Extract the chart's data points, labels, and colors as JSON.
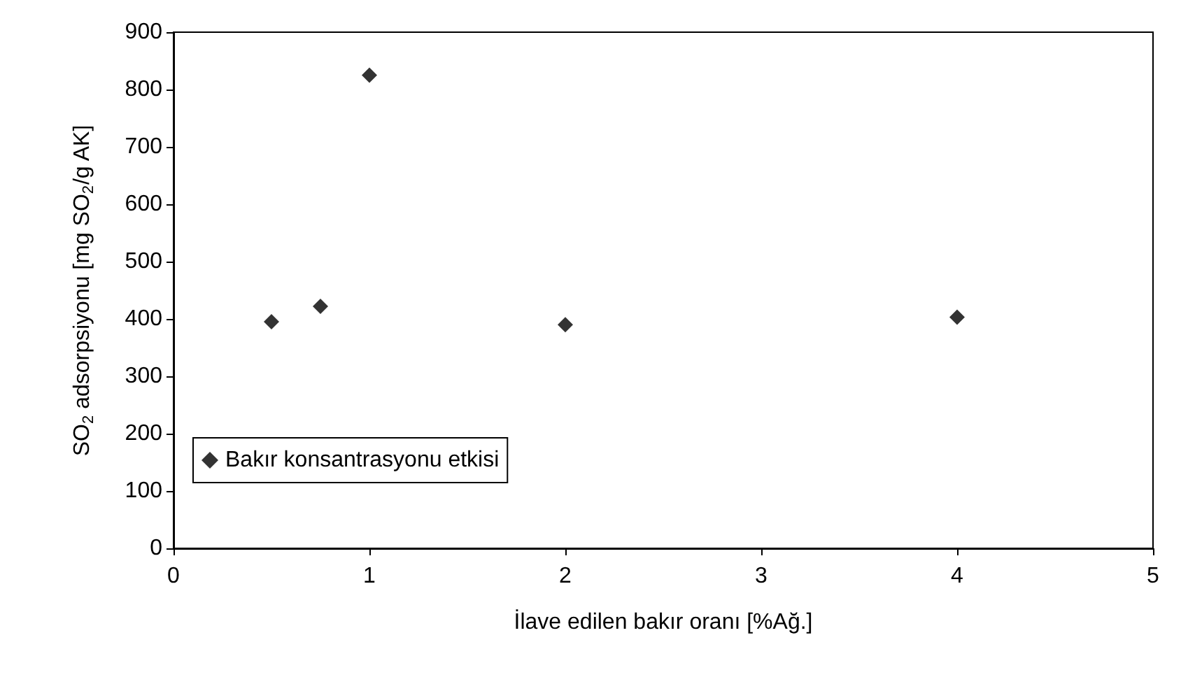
{
  "chart_data": {
    "type": "scatter",
    "xlabel": "İlave edilen bakır oranı [%Ağ.]",
    "ylabel": "SO$_{2}$ adsorpsiyonu [mg SO$_{2}$/g AK]",
    "x": [
      0.5,
      0.75,
      1,
      2,
      4
    ],
    "series": [
      {
        "name": "Bakır konsantrasyonu etkisi",
        "color": "#000000",
        "values": [
          395,
          422,
          825,
          390,
          403
        ]
      }
    ],
    "xlim": [
      0,
      5
    ],
    "xticks": [
      0,
      1,
      2,
      3,
      4,
      5
    ],
    "ylim": [
      0,
      900
    ],
    "yticks": [
      0,
      100,
      200,
      300,
      400,
      500,
      600,
      700,
      800,
      900
    ],
    "marker": "diamond",
    "grid": false,
    "legend": "bottom left"
  }
}
